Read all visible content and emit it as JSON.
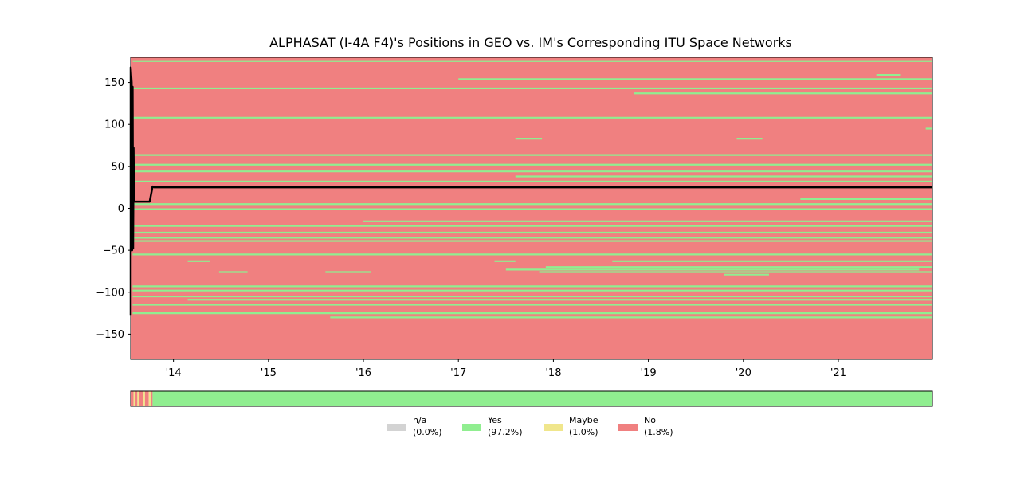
{
  "chart_data": {
    "type": "heatmap",
    "title": "ALPHASAT (I-4A F4)'s Positions in GEO vs. IM's Corresponding ITU Space Networks",
    "xlabel": "",
    "ylabel": "",
    "x_range": [
      2013.55,
      2021.99
    ],
    "ylim": [
      -180,
      180
    ],
    "x_ticks": [
      {
        "value": 2014,
        "label": "'14"
      },
      {
        "value": 2015,
        "label": "'15"
      },
      {
        "value": 2016,
        "label": "'16"
      },
      {
        "value": 2017,
        "label": "'17"
      },
      {
        "value": 2018,
        "label": "'18"
      },
      {
        "value": 2019,
        "label": "'19"
      },
      {
        "value": 2020,
        "label": "'20"
      },
      {
        "value": 2021,
        "label": "'21"
      }
    ],
    "y_ticks": [
      {
        "value": 150,
        "label": "150"
      },
      {
        "value": 100,
        "label": "100"
      },
      {
        "value": 50,
        "label": "50"
      },
      {
        "value": 0,
        "label": "0"
      },
      {
        "value": -50,
        "label": "−50"
      },
      {
        "value": -100,
        "label": "−100"
      },
      {
        "value": -150,
        "label": "−150"
      }
    ],
    "background_status": "No",
    "itu_network_lines": [
      {
        "y": 175.5,
        "x0": 2013.57,
        "x1": 2021.99
      },
      {
        "y": 159,
        "x0": 2021.4,
        "x1": 2021.65
      },
      {
        "y": 154,
        "x0": 2017.0,
        "x1": 2021.99
      },
      {
        "y": 143,
        "x0": 2013.57,
        "x1": 2021.99
      },
      {
        "y": 137,
        "x0": 2018.85,
        "x1": 2021.99
      },
      {
        "y": 108,
        "x0": 2013.57,
        "x1": 2021.99
      },
      {
        "y": 95,
        "x0": 2021.92,
        "x1": 2021.99
      },
      {
        "y": 83,
        "x0": 2017.6,
        "x1": 2017.88
      },
      {
        "y": 83,
        "x0": 2019.93,
        "x1": 2020.2
      },
      {
        "y": 63.5,
        "x0": 2013.57,
        "x1": 2021.99
      },
      {
        "y": 52,
        "x0": 2013.57,
        "x1": 2021.99
      },
      {
        "y": 44,
        "x0": 2013.57,
        "x1": 2021.99
      },
      {
        "y": 38,
        "x0": 2017.6,
        "x1": 2021.99
      },
      {
        "y": 32,
        "x0": 2013.57,
        "x1": 2021.99
      },
      {
        "y": 11,
        "x0": 2020.6,
        "x1": 2021.99
      },
      {
        "y": 5,
        "x0": 2013.57,
        "x1": 2021.99
      },
      {
        "y": -1,
        "x0": 2013.57,
        "x1": 2021.99
      },
      {
        "y": -15.5,
        "x0": 2016.0,
        "x1": 2021.99
      },
      {
        "y": -21,
        "x0": 2013.57,
        "x1": 2021.99
      },
      {
        "y": -29,
        "x0": 2013.57,
        "x1": 2021.99
      },
      {
        "y": -35,
        "x0": 2013.57,
        "x1": 2021.99
      },
      {
        "y": -39,
        "x0": 2013.57,
        "x1": 2021.99
      },
      {
        "y": -55,
        "x0": 2013.57,
        "x1": 2021.99
      },
      {
        "y": -63,
        "x0": 2014.15,
        "x1": 2014.38
      },
      {
        "y": -63,
        "x0": 2017.38,
        "x1": 2017.6
      },
      {
        "y": -63,
        "x0": 2018.62,
        "x1": 2021.99
      },
      {
        "y": -70,
        "x0": 2017.92,
        "x1": 2021.99
      },
      {
        "y": -73,
        "x0": 2017.5,
        "x1": 2021.85
      },
      {
        "y": -76,
        "x0": 2014.48,
        "x1": 2014.78
      },
      {
        "y": -76,
        "x0": 2015.6,
        "x1": 2016.08
      },
      {
        "y": -76,
        "x0": 2017.85,
        "x1": 2021.99
      },
      {
        "y": -79,
        "x0": 2019.8,
        "x1": 2020.27
      },
      {
        "y": -93,
        "x0": 2013.57,
        "x1": 2021.99
      },
      {
        "y": -98,
        "x0": 2013.57,
        "x1": 2021.99
      },
      {
        "y": -105,
        "x0": 2013.57,
        "x1": 2021.99
      },
      {
        "y": -109,
        "x0": 2014.15,
        "x1": 2021.99
      },
      {
        "y": -115,
        "x0": 2013.57,
        "x1": 2021.99
      },
      {
        "y": -125,
        "x0": 2013.57,
        "x1": 2021.99
      },
      {
        "y": -130,
        "x0": 2015.65,
        "x1": 2021.99
      }
    ],
    "satellite_position": [
      {
        "x": 2013.55,
        "y": -128
      },
      {
        "x": 2013.55,
        "y": 168
      },
      {
        "x": 2013.56,
        "y": 150
      },
      {
        "x": 2013.565,
        "y": -50
      },
      {
        "x": 2013.57,
        "y": 145
      },
      {
        "x": 2013.575,
        "y": -48
      },
      {
        "x": 2013.58,
        "y": 72
      },
      {
        "x": 2013.585,
        "y": 8
      },
      {
        "x": 2013.75,
        "y": 8
      },
      {
        "x": 2013.78,
        "y": 26
      },
      {
        "x": 2013.8,
        "y": 25
      },
      {
        "x": 2021.99,
        "y": 25
      }
    ],
    "status_strip": [
      {
        "x0": 2013.55,
        "x1": 2013.58,
        "status": "No"
      },
      {
        "x0": 2013.58,
        "x1": 2013.6,
        "status": "Maybe"
      },
      {
        "x0": 2013.6,
        "x1": 2013.62,
        "status": "No"
      },
      {
        "x0": 2013.62,
        "x1": 2013.64,
        "status": "Maybe"
      },
      {
        "x0": 2013.64,
        "x1": 2013.68,
        "status": "No"
      },
      {
        "x0": 2013.68,
        "x1": 2013.7,
        "status": "Maybe"
      },
      {
        "x0": 2013.7,
        "x1": 2013.74,
        "status": "No"
      },
      {
        "x0": 2013.74,
        "x1": 2013.76,
        "status": "Maybe"
      },
      {
        "x0": 2013.76,
        "x1": 2013.78,
        "status": "No"
      },
      {
        "x0": 2013.78,
        "x1": 2021.99,
        "status": "Yes"
      }
    ],
    "legend": [
      {
        "key": "na",
        "label": "n/a",
        "pct": "(0.0%)",
        "color": "#d3d3d3"
      },
      {
        "key": "yes",
        "label": "Yes",
        "pct": "(97.2%)",
        "color": "#90ee90"
      },
      {
        "key": "maybe",
        "label": "Maybe",
        "pct": "(1.0%)",
        "color": "#f0e68c"
      },
      {
        "key": "no",
        "label": "No",
        "pct": "(1.8%)",
        "color": "#f08080"
      }
    ],
    "legend_placement": "bottom-center",
    "colors": {
      "No": "#f08080",
      "Yes": "#90ee90",
      "Maybe": "#f0e68c",
      "n/a": "#d3d3d3",
      "position_line": "#000000"
    }
  }
}
